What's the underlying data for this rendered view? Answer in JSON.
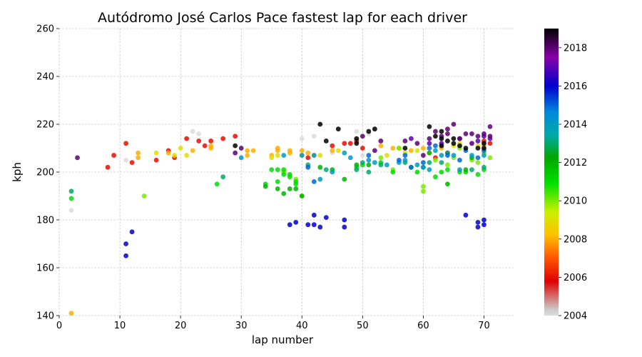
{
  "chart_data": {
    "type": "scatter",
    "title": "Autódromo José Carlos Pace fastest lap for each driver",
    "xlabel": "lap number",
    "ylabel": "kph",
    "xlim": [
      0,
      75
    ],
    "ylim": [
      140,
      260
    ],
    "xticks": [
      "0",
      "10",
      "20",
      "30",
      "40",
      "50",
      "60",
      "70"
    ],
    "yticks": [
      "140",
      "160",
      "180",
      "200",
      "220",
      "240",
      "260"
    ],
    "grid": true,
    "colorbar": {
      "range": [
        2004,
        2019
      ],
      "ticks": [
        "2004",
        "2006",
        "2008",
        "2010",
        "2012",
        "2014",
        "2016",
        "2018"
      ],
      "colormap": "nipy_spectral_r"
    },
    "series": [
      {
        "year": 2004,
        "points": [
          [
            2,
            184
          ],
          [
            11,
            205
          ],
          [
            22,
            217
          ],
          [
            23,
            216
          ],
          [
            40,
            214
          ],
          [
            42,
            215
          ],
          [
            45,
            208
          ],
          [
            49,
            217
          ],
          [
            50,
            207
          ],
          [
            51,
            216
          ],
          [
            52,
            218
          ]
        ]
      },
      {
        "year": 2006,
        "points": [
          [
            8,
            202
          ],
          [
            9,
            207
          ],
          [
            11,
            212
          ],
          [
            12,
            204
          ],
          [
            16,
            205
          ],
          [
            18,
            209
          ],
          [
            19,
            206
          ],
          [
            21,
            214
          ],
          [
            23,
            213
          ],
          [
            24,
            211
          ],
          [
            25,
            213
          ],
          [
            27,
            214
          ],
          [
            29,
            215
          ],
          [
            41,
            206
          ],
          [
            45,
            211
          ],
          [
            47,
            212
          ],
          [
            48,
            212
          ],
          [
            49,
            213
          ],
          [
            50,
            210
          ],
          [
            62,
            206
          ],
          [
            64,
            208
          ],
          [
            70,
            213
          ],
          [
            71,
            212
          ]
        ]
      },
      {
        "year": 2008,
        "points": [
          [
            2,
            141
          ],
          [
            13,
            208
          ],
          [
            13,
            206
          ],
          [
            18,
            208
          ],
          [
            22,
            209
          ],
          [
            25,
            210
          ],
          [
            25,
            211
          ],
          [
            31,
            209
          ],
          [
            31,
            207
          ],
          [
            32,
            209
          ],
          [
            35,
            207
          ],
          [
            36,
            210
          ],
          [
            36,
            209
          ],
          [
            38,
            209
          ],
          [
            38,
            208
          ],
          [
            40,
            209
          ],
          [
            40,
            207
          ],
          [
            41,
            208
          ],
          [
            42,
            207
          ],
          [
            45,
            209
          ],
          [
            53,
            211
          ],
          [
            55,
            210
          ],
          [
            56,
            210
          ],
          [
            58,
            209
          ],
          [
            60,
            210
          ],
          [
            61,
            208
          ],
          [
            63,
            210
          ],
          [
            68,
            212
          ],
          [
            70,
            211
          ]
        ]
      },
      {
        "year": 2009,
        "points": [
          [
            16,
            208
          ],
          [
            19,
            207
          ],
          [
            20,
            210
          ],
          [
            21,
            207
          ],
          [
            35,
            206
          ],
          [
            36,
            207
          ],
          [
            43,
            207
          ],
          [
            46,
            209
          ],
          [
            54,
            207
          ],
          [
            57,
            208
          ],
          [
            59,
            209
          ],
          [
            65,
            211
          ],
          [
            66,
            212
          ],
          [
            69,
            211
          ]
        ]
      },
      {
        "year": 2010,
        "points": [
          [
            14,
            190
          ],
          [
            37,
            200
          ],
          [
            39,
            197
          ],
          [
            40,
            190
          ],
          [
            53,
            206
          ],
          [
            55,
            201
          ],
          [
            56,
            210
          ],
          [
            60,
            194
          ],
          [
            60,
            192
          ],
          [
            62,
            205
          ],
          [
            64,
            203
          ],
          [
            65,
            206
          ],
          [
            66,
            210
          ],
          [
            68,
            205
          ],
          [
            69,
            204
          ],
          [
            70,
            208
          ],
          [
            71,
            206
          ]
        ]
      },
      {
        "year": 2011,
        "points": [
          [
            2,
            189
          ],
          [
            26,
            195
          ],
          [
            34,
            195
          ],
          [
            35,
            201
          ],
          [
            36,
            201
          ],
          [
            36,
            196
          ],
          [
            37,
            199
          ],
          [
            37,
            201
          ],
          [
            38,
            198
          ],
          [
            38,
            199
          ],
          [
            39,
            196
          ],
          [
            39,
            195
          ],
          [
            49,
            202
          ],
          [
            50,
            203
          ],
          [
            53,
            204
          ],
          [
            55,
            200
          ],
          [
            58,
            202
          ],
          [
            59,
            200
          ],
          [
            62,
            198
          ],
          [
            63,
            200
          ],
          [
            64,
            201
          ],
          [
            66,
            200
          ],
          [
            67,
            200
          ],
          [
            69,
            199
          ],
          [
            70,
            201
          ]
        ]
      },
      {
        "year": 2012,
        "points": [
          [
            34,
            194
          ],
          [
            36,
            193
          ],
          [
            37,
            191
          ],
          [
            38,
            193
          ],
          [
            39,
            193
          ],
          [
            40,
            190
          ],
          [
            43,
            202
          ],
          [
            45,
            201
          ],
          [
            47,
            197
          ],
          [
            49,
            203
          ],
          [
            51,
            203
          ],
          [
            60,
            202
          ],
          [
            61,
            208
          ],
          [
            64,
            195
          ],
          [
            67,
            201
          ],
          [
            68,
            206
          ]
        ]
      },
      {
        "year": 2013,
        "points": [
          [
            2,
            192
          ],
          [
            27,
            198
          ],
          [
            41,
            203
          ],
          [
            44,
            201
          ],
          [
            49,
            201
          ],
          [
            50,
            204
          ],
          [
            51,
            200
          ],
          [
            53,
            203
          ],
          [
            57,
            204
          ],
          [
            61,
            204
          ],
          [
            63,
            204
          ],
          [
            64,
            208
          ],
          [
            68,
            201
          ],
          [
            70,
            202
          ]
        ]
      },
      {
        "year": 2014,
        "points": [
          [
            30,
            206
          ],
          [
            37,
            207
          ],
          [
            40,
            207
          ],
          [
            42,
            207
          ],
          [
            43,
            197
          ],
          [
            45,
            200
          ],
          [
            47,
            208
          ],
          [
            48,
            206
          ],
          [
            51,
            205
          ],
          [
            52,
            204
          ],
          [
            54,
            203
          ],
          [
            56,
            204
          ],
          [
            57,
            205
          ],
          [
            59,
            203
          ],
          [
            60,
            202
          ],
          [
            61,
            201
          ],
          [
            62,
            209
          ],
          [
            63,
            207
          ],
          [
            65,
            207
          ],
          [
            66,
            201
          ],
          [
            68,
            207
          ],
          [
            70,
            207
          ]
        ]
      },
      {
        "year": 2015,
        "points": [
          [
            41,
            202
          ],
          [
            42,
            196
          ],
          [
            51,
            207
          ],
          [
            56,
            205
          ],
          [
            57,
            207
          ],
          [
            58,
            202
          ],
          [
            60,
            204
          ],
          [
            61,
            210
          ],
          [
            62,
            211
          ],
          [
            64,
            207
          ],
          [
            66,
            205
          ],
          [
            67,
            209
          ],
          [
            69,
            206
          ],
          [
            70,
            209
          ]
        ]
      },
      {
        "year": 2016,
        "points": [
          [
            11,
            170
          ],
          [
            11,
            165
          ],
          [
            12,
            175
          ],
          [
            38,
            178
          ],
          [
            39,
            179
          ],
          [
            41,
            178
          ],
          [
            42,
            178
          ],
          [
            42,
            182
          ],
          [
            43,
            177
          ],
          [
            44,
            181
          ],
          [
            47,
            180
          ],
          [
            47,
            177
          ],
          [
            67,
            182
          ],
          [
            69,
            179
          ],
          [
            69,
            177
          ],
          [
            70,
            180
          ],
          [
            70,
            178
          ]
        ]
      },
      {
        "year": 2017,
        "points": [
          [
            58,
            214
          ],
          [
            61,
            212
          ],
          [
            63,
            212
          ],
          [
            66,
            214
          ],
          [
            68,
            212
          ],
          [
            69,
            213
          ],
          [
            70,
            215
          ],
          [
            71,
            214
          ]
        ]
      },
      {
        "year": 2018,
        "points": [
          [
            3,
            206
          ],
          [
            29,
            208
          ],
          [
            30,
            210
          ],
          [
            50,
            215
          ],
          [
            52,
            209
          ],
          [
            53,
            213
          ],
          [
            57,
            213
          ],
          [
            59,
            212
          ],
          [
            60,
            207
          ],
          [
            61,
            214
          ],
          [
            62,
            217
          ],
          [
            63,
            215
          ],
          [
            64,
            216
          ],
          [
            64,
            218
          ],
          [
            65,
            220
          ],
          [
            66,
            214
          ],
          [
            67,
            216
          ],
          [
            68,
            216
          ],
          [
            69,
            215
          ],
          [
            70,
            216
          ],
          [
            71,
            215
          ],
          [
            71,
            219
          ]
        ]
      },
      {
        "year": 2019,
        "points": [
          [
            29,
            211
          ],
          [
            43,
            220
          ],
          [
            44,
            213
          ],
          [
            46,
            218
          ],
          [
            49,
            214
          ],
          [
            49,
            212
          ],
          [
            51,
            217
          ],
          [
            52,
            218
          ],
          [
            57,
            210
          ],
          [
            61,
            219
          ],
          [
            62,
            215
          ],
          [
            63,
            217
          ],
          [
            63,
            214
          ],
          [
            63,
            211
          ],
          [
            64,
            213
          ],
          [
            65,
            214
          ],
          [
            65,
            212
          ],
          [
            66,
            211
          ],
          [
            67,
            210
          ],
          [
            69,
            210
          ],
          [
            70,
            212
          ],
          [
            70,
            210
          ]
        ]
      }
    ]
  }
}
